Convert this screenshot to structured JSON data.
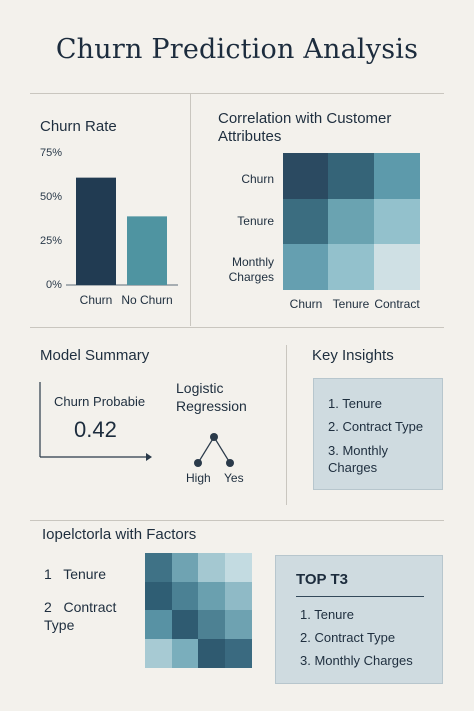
{
  "page": {
    "title": "Churn Prediction Analysis"
  },
  "churn_rate": {
    "heading": "Churn Rate",
    "yticks": [
      "75%",
      "50%",
      "25%",
      "0%"
    ]
  },
  "correlation": {
    "heading": "Correlation with Customer Attributes",
    "rows": [
      "Churn",
      "Tenure",
      "Monthly Charges"
    ],
    "cols": [
      "Churn",
      "Tenure",
      "Contract"
    ],
    "colors": [
      [
        "#2b4a61",
        "#356478",
        "#5d9aab"
      ],
      [
        "#3b6d80",
        "#6aa3b1",
        "#93c1cc"
      ],
      [
        "#659fb0",
        "#93c1cc",
        "#cfe0e4"
      ]
    ]
  },
  "model_summary": {
    "heading": "Model Summary",
    "prob_label": "Churn Probabie",
    "prob_value": "0.42",
    "model_line1": "Logistic",
    "model_line2": "Regression",
    "node_left": "High",
    "node_right": "Yes"
  },
  "key_insights": {
    "heading": "Key Insights",
    "items": [
      "1.  Tenure",
      "2.  Contract Type",
      "3.  Monthly Charges"
    ]
  },
  "factors": {
    "heading": "Iopelctorla with Factors",
    "items": [
      "1   Tenure",
      "2   Contract Type"
    ],
    "colors": [
      [
        "#3f7286",
        "#6fa3b2",
        "#a4c8d1",
        "#c3dbe1"
      ],
      [
        "#2f5e74",
        "#4b8194",
        "#6aa0af",
        "#8fbac6"
      ],
      [
        "#5892a4",
        "#2f5b71",
        "#4d8193",
        "#6ea2b1"
      ],
      [
        "#a7cad3",
        "#7aaebc",
        "#2f5a70",
        "#3a6a80"
      ]
    ]
  },
  "top3": {
    "heading": "TOP T3",
    "items": [
      "1. Tenure",
      "2. Contract Type",
      "3. Monthly Charges"
    ]
  },
  "chart_data": [
    {
      "type": "bar",
      "title": "Churn Rate",
      "categories": [
        "Churn",
        "No Churn"
      ],
      "values": [
        61,
        39
      ],
      "ylim": [
        0,
        75
      ],
      "yticks": [
        0,
        25,
        50,
        75
      ],
      "colors": [
        "#213b52",
        "#4f94a1"
      ],
      "grid": false
    },
    {
      "type": "heatmap",
      "title": "Correlation with Customer Attributes",
      "rows": [
        "Churn",
        "Tenure",
        "Monthly Charges"
      ],
      "cols": [
        "Churn",
        "Tenure",
        "Contract"
      ]
    }
  ]
}
